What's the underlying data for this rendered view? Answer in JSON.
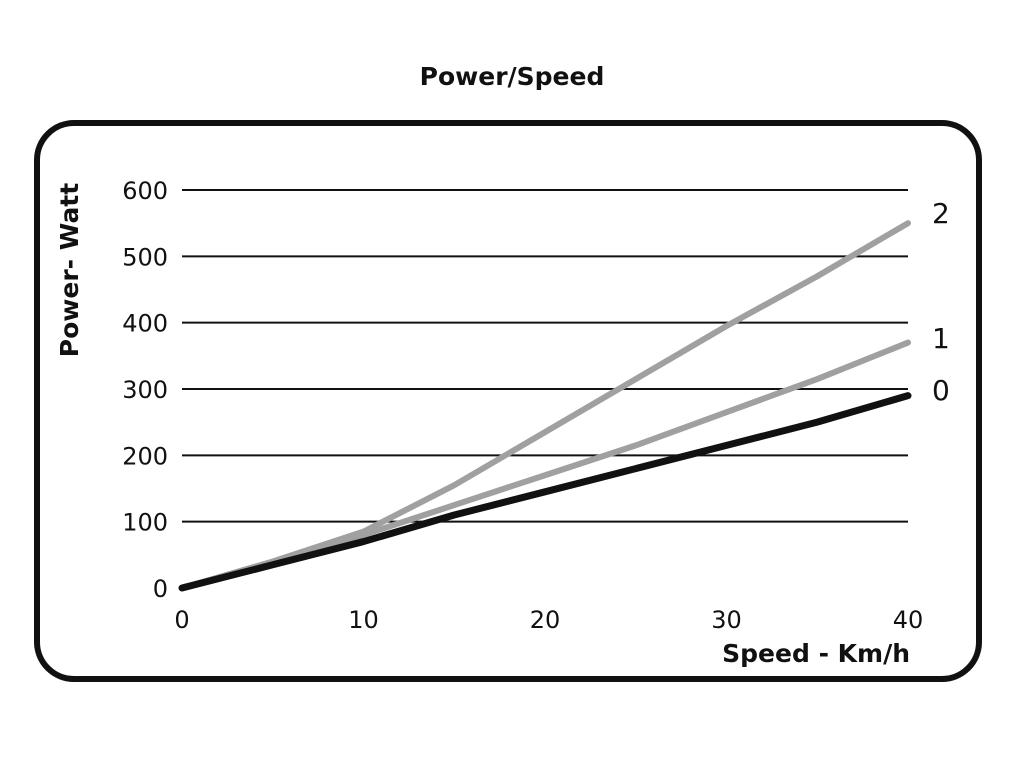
{
  "chart_data": {
    "type": "line",
    "title": "Power/Speed",
    "xlabel": "Speed - Km/h",
    "ylabel": "Power- Watt",
    "xlim": [
      0,
      40
    ],
    "ylim": [
      0,
      600
    ],
    "xticks": [
      "0",
      "10",
      "20",
      "30",
      "40"
    ],
    "yticks": [
      "0",
      "100",
      "200",
      "300",
      "400",
      "500",
      "600"
    ],
    "grid": "horizontal",
    "series": [
      {
        "name": "0",
        "color": "#111111",
        "x": [
          0,
          5,
          10,
          15,
          20,
          25,
          30,
          35,
          40
        ],
        "y": [
          0,
          35,
          70,
          110,
          145,
          180,
          215,
          250,
          290
        ]
      },
      {
        "name": "1",
        "color": "#a0a0a0",
        "x": [
          0,
          5,
          10,
          15,
          20,
          25,
          30,
          35,
          40
        ],
        "y": [
          0,
          38,
          80,
          125,
          170,
          215,
          265,
          315,
          370
        ]
      },
      {
        "name": "2",
        "color": "#a0a0a0",
        "x": [
          0,
          5,
          10,
          15,
          20,
          25,
          30,
          35,
          40
        ],
        "y": [
          0,
          40,
          85,
          155,
          235,
          315,
          395,
          470,
          550
        ]
      }
    ]
  }
}
